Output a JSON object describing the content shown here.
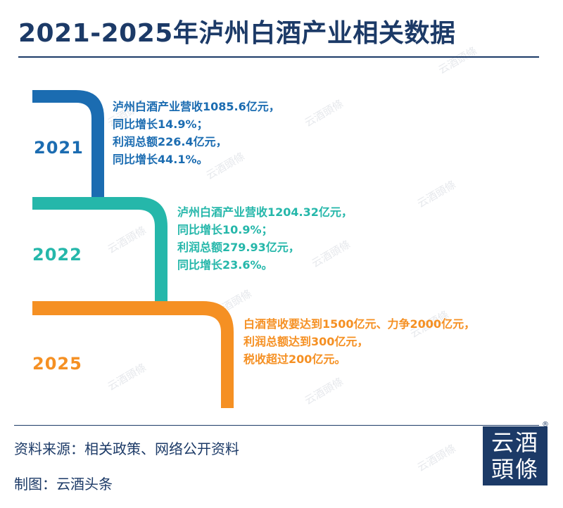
{
  "title": "2021-2025年泸州白酒产业相关数据",
  "colors": {
    "navy": "#1c3a67",
    "y2021": "#1b6cb1",
    "y2022": "#25b7aa",
    "y2025": "#f59023"
  },
  "timeline": [
    {
      "year": "2021",
      "lines": [
        "泸州白酒产业营收1085.6亿元，",
        "同比增长14.9%；",
        "利润总额226.4亿元，",
        "同比增长44.1%。"
      ]
    },
    {
      "year": "2022",
      "lines": [
        "泸州白酒产业营收1204.32亿元，",
        "同比增长10.9%；",
        "利润总额279.93亿元，",
        "同比增长23.6%。"
      ]
    },
    {
      "year": "2025",
      "lines": [
        "白酒营收要达到1500亿元、力争2000亿元，",
        "利润总额达到300亿元，",
        "税收超过200亿元。"
      ]
    }
  ],
  "footer": {
    "source": "资料来源：相关政策、网络公开资料",
    "maker": "制图：云酒头条"
  },
  "logo": {
    "line1": "云酒",
    "line2": "頭條",
    "reg": "®"
  },
  "watermark": "云酒頭條"
}
